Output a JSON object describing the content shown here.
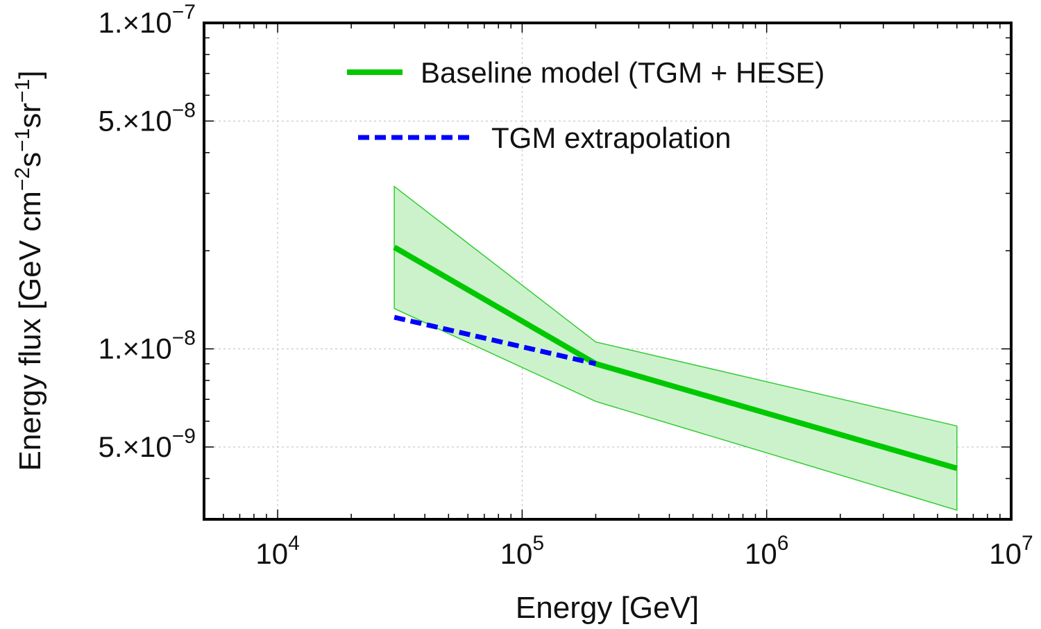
{
  "chart_data": {
    "type": "line",
    "xscale": "log",
    "yscale": "log",
    "xlim": [
      5000,
      10000000
    ],
    "ylim": [
      3e-09,
      1e-07
    ],
    "xlabel": "Energy [GeV]",
    "ylabel": {
      "base": "Energy flux [GeV cm",
      "sup1": "−2",
      "mid1": "s",
      "sup2": "−1",
      "mid2": "sr",
      "sup3": "−1",
      "end": "]"
    },
    "x_ticks": [
      {
        "value": 10000,
        "base": "10",
        "exp": "4"
      },
      {
        "value": 100000,
        "base": "10",
        "exp": "5"
      },
      {
        "value": 1000000,
        "base": "10",
        "exp": "6"
      },
      {
        "value": 10000000,
        "base": "10",
        "exp": "7"
      }
    ],
    "y_ticks": [
      {
        "value": 1e-07,
        "mant": "1.×10",
        "exp": "−7"
      },
      {
        "value": 5e-08,
        "mant": "5.×10",
        "exp": "−8"
      },
      {
        "value": 1e-08,
        "mant": "1.×10",
        "exp": "−8"
      },
      {
        "value": 5e-09,
        "mant": "5.×10",
        "exp": "−9"
      }
    ],
    "grid": true,
    "legend_position": "top",
    "series": [
      {
        "name": "Baseline model (TGM + HESE)",
        "color": "#00c800",
        "style": "solid",
        "x": [
          30000,
          200000,
          6000000
        ],
        "y": [
          2.05e-08,
          9e-09,
          4.3e-09
        ],
        "band": {
          "color": "#ccf2cc",
          "edge_color": "#33cc33",
          "upper": [
            3.15e-08,
            1.05e-08,
            5.8e-09
          ],
          "lower": [
            1.33e-08,
            6.9e-09,
            3.2e-09
          ]
        }
      },
      {
        "name": "TGM extrapolation",
        "color": "#0000ff",
        "style": "dashed",
        "x": [
          30000,
          200000
        ],
        "y": [
          1.25e-08,
          9e-09
        ]
      }
    ]
  }
}
